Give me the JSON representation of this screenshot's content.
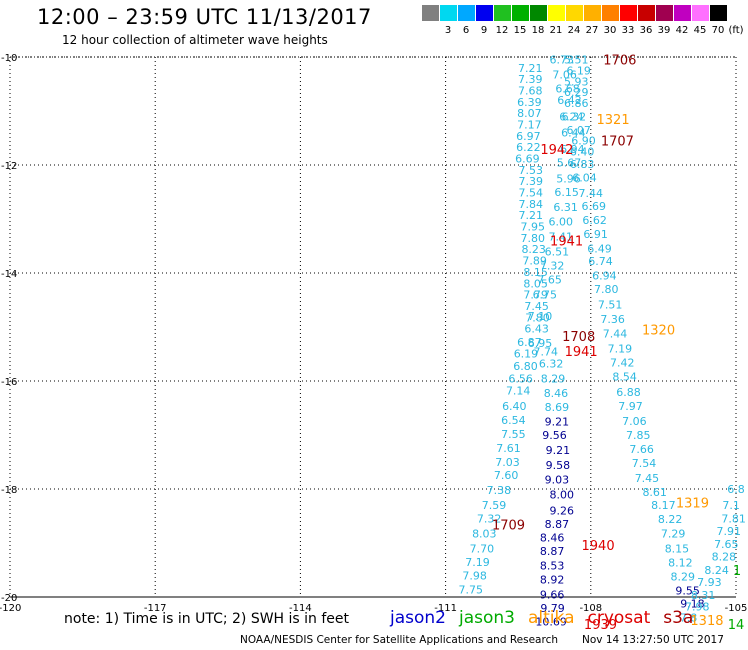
{
  "header": {
    "title": "12:00 – 23:59 UTC 11/13/2017",
    "subtitle": "12 hour collection of altimeter wave heights"
  },
  "legend": {
    "unit": "(ft)",
    "items": [
      {
        "label": "",
        "color": "#808080"
      },
      {
        "label": "3",
        "color": "#00d8f0"
      },
      {
        "label": "6",
        "color": "#00a8ff"
      },
      {
        "label": "9",
        "color": "#0000f0"
      },
      {
        "label": "12",
        "color": "#20c020"
      },
      {
        "label": "15",
        "color": "#00b000"
      },
      {
        "label": "18",
        "color": "#008800"
      },
      {
        "label": "21",
        "color": "#ffff00"
      },
      {
        "label": "24",
        "color": "#ffd800"
      },
      {
        "label": "27",
        "color": "#ffb000"
      },
      {
        "label": "30",
        "color": "#ff8000"
      },
      {
        "label": "33",
        "color": "#ff0000"
      },
      {
        "label": "36",
        "color": "#c80000"
      },
      {
        "label": "39",
        "color": "#a00050"
      },
      {
        "label": "42",
        "color": "#c000c0"
      },
      {
        "label": "45",
        "color": "#ff70ff"
      },
      {
        "label": "70",
        "color": "#000000"
      }
    ]
  },
  "footer": {
    "notes": "note: 1) Time is in UTC; 2) SWH is in feet",
    "satellites": [
      {
        "name": "jason2",
        "color": "#0000cc"
      },
      {
        "name": "jason3",
        "color": "#00aa00"
      },
      {
        "name": "altika",
        "color": "#ff9900"
      },
      {
        "name": "cryosat",
        "color": "#dd0000"
      },
      {
        "name": "s3a",
        "color": "#aa0000"
      }
    ],
    "credit": "NOAA/NESDIS Center for Satellite Applications and Research",
    "timestamp": "Nov 14 13:27:50 UTC 2017"
  },
  "chart_data": {
    "type": "scatter",
    "title": "12:00 – 23:59 UTC 11/13/2017",
    "subtitle": "12 hour collection of altimeter wave heights",
    "x_axis": {
      "range": [
        -120,
        -105
      ],
      "ticks": [
        -120,
        -117,
        -114,
        -111,
        -108,
        -105
      ],
      "tick_labels": [
        "-120",
        "-117",
        "-114",
        "-111",
        "-108",
        "-105"
      ]
    },
    "y_axis": {
      "range": [
        -20,
        -10
      ],
      "ticks": [
        -10,
        -12,
        -14,
        -16,
        -18,
        -20
      ],
      "tick_labels": [
        "-10",
        "-12",
        "-14",
        "-16",
        "-18",
        "-20"
      ]
    },
    "grid": true,
    "colors": {
      "teal": "#2cb8e0",
      "navy": "#000090",
      "darkred": "#8b0000",
      "red": "#dd0000",
      "orange": "#ff9900",
      "green": "#00aa00"
    },
    "series": [
      {
        "name": "track-a",
        "color": "teal",
        "points": [
          [
            -109.25,
            -10.2,
            "7.21"
          ],
          [
            -109.25,
            -10.41,
            "7.39"
          ],
          [
            -109.25,
            -10.62,
            "7.68"
          ],
          [
            -109.27,
            -10.83,
            "6.39"
          ],
          [
            -109.27,
            -11.04,
            "8.07"
          ],
          [
            -109.27,
            -11.25,
            "7.17"
          ],
          [
            -109.29,
            -11.46,
            "6.97"
          ],
          [
            -109.29,
            -11.67,
            "6.22"
          ],
          [
            -109.31,
            -11.88,
            "6.69"
          ],
          [
            -109.24,
            -12.09,
            "7.53"
          ],
          [
            -109.24,
            -12.3,
            "7.39"
          ],
          [
            -109.24,
            -12.51,
            "7.54"
          ],
          [
            -109.24,
            -12.72,
            "7.84"
          ],
          [
            -109.24,
            -12.93,
            "7.21"
          ],
          [
            -109.2,
            -13.14,
            "7.95"
          ],
          [
            -109.2,
            -13.35,
            "7.80"
          ],
          [
            -109.18,
            -13.56,
            "8.23"
          ],
          [
            -109.16,
            -13.77,
            "7.89"
          ],
          [
            -109.14,
            -13.98,
            "8.15"
          ],
          [
            -109.14,
            -14.19,
            "8.05"
          ],
          [
            -109.14,
            -14.4,
            "7.79"
          ],
          [
            -109.12,
            -14.61,
            "7.45"
          ],
          [
            -109.1,
            -14.82,
            "7.80"
          ],
          [
            -109.12,
            -15.03,
            "6.43"
          ],
          [
            -109.27,
            -15.28,
            "6.87"
          ],
          [
            -109.34,
            -15.49,
            "6.19"
          ],
          [
            -109.35,
            -15.72,
            "6.80"
          ],
          [
            -109.45,
            -15.95,
            "6.56"
          ],
          [
            -109.5,
            -16.18,
            "7.14"
          ],
          [
            -109.58,
            -16.46,
            "6.40"
          ],
          [
            -109.6,
            -16.72,
            "6.54"
          ],
          [
            -109.6,
            -16.98,
            "7.55"
          ],
          [
            -109.7,
            -17.24,
            "7.61"
          ],
          [
            -109.72,
            -17.5,
            "7.03"
          ],
          [
            -109.75,
            -17.74,
            "7.60"
          ],
          [
            -109.9,
            -18.02,
            "7.38"
          ],
          [
            -110.0,
            -18.3,
            "7.59"
          ],
          [
            -110.1,
            -18.55,
            "7.32"
          ],
          [
            -110.2,
            -18.82,
            "8.03"
          ],
          [
            -110.25,
            -19.1,
            "7.70"
          ],
          [
            -110.34,
            -19.35,
            "7.19"
          ],
          [
            -110.4,
            -19.6,
            "7.98"
          ],
          [
            -110.48,
            -19.86,
            "7.75"
          ]
        ]
      },
      {
        "name": "track-b",
        "color": "teal",
        "points": [
          [
            -108.6,
            -10.05,
            "6.73"
          ],
          [
            -108.54,
            -10.32,
            "7.06"
          ],
          [
            -108.48,
            -10.58,
            "6.68"
          ],
          [
            -108.44,
            -10.8,
            "6.42"
          ],
          [
            -108.4,
            -11.1,
            "6.24"
          ],
          [
            -108.36,
            -11.4,
            "6.44"
          ],
          [
            -108.38,
            -11.7,
            "6.94"
          ],
          [
            -108.45,
            -11.95,
            "5.67"
          ],
          [
            -108.46,
            -12.25,
            "5.96"
          ],
          [
            -108.5,
            -12.5,
            "6.15"
          ],
          [
            -108.52,
            -12.78,
            "6.31"
          ],
          [
            -108.62,
            -13.05,
            "6.00"
          ],
          [
            -108.62,
            -13.32,
            "7.41"
          ],
          [
            -108.7,
            -13.6,
            "6.51"
          ],
          [
            -108.8,
            -13.86,
            "7.32"
          ],
          [
            -108.85,
            -14.12,
            "7.65"
          ],
          [
            -108.95,
            -14.4,
            "6.75"
          ],
          [
            -109.05,
            -14.8,
            "7.10"
          ],
          [
            -109.05,
            -15.3,
            "6.95"
          ],
          [
            -108.93,
            -15.45,
            "7.74"
          ],
          [
            -108.82,
            -15.68,
            "6.32"
          ],
          [
            -108.78,
            -15.95,
            "8.29"
          ],
          [
            -108.72,
            -16.22,
            "8.46"
          ],
          [
            -108.7,
            -16.48,
            "8.69"
          ]
        ]
      },
      {
        "name": "track-c",
        "color": "teal",
        "points": [
          [
            -108.3,
            -10.05,
            "5.51"
          ],
          [
            -108.25,
            -10.25,
            "6.19"
          ],
          [
            -108.3,
            -10.45,
            "5.93"
          ],
          [
            -108.3,
            -10.65,
            "6.29"
          ],
          [
            -108.3,
            -10.85,
            "6.86"
          ],
          [
            -108.35,
            -11.1,
            "6.32"
          ],
          [
            -108.25,
            -11.35,
            "6.07"
          ],
          [
            -108.15,
            -11.55,
            "6.90"
          ],
          [
            -108.18,
            -11.75,
            "6.40"
          ],
          [
            -108.18,
            -11.98,
            "6.83"
          ],
          [
            -108.13,
            -12.23,
            "6.04"
          ],
          [
            -108.0,
            -12.52,
            "7.44"
          ],
          [
            -107.94,
            -12.76,
            "6.69"
          ],
          [
            -107.92,
            -13.02,
            "6.62"
          ],
          [
            -107.9,
            -13.28,
            "6.91"
          ],
          [
            -107.82,
            -13.55,
            "6.49"
          ],
          [
            -107.8,
            -13.78,
            "6.74"
          ],
          [
            -107.72,
            -14.05,
            "6.94"
          ],
          [
            -107.68,
            -14.3,
            "7.80"
          ],
          [
            -107.6,
            -14.58,
            "7.51"
          ],
          [
            -107.55,
            -14.85,
            "7.36"
          ],
          [
            -107.5,
            -15.12,
            "7.44"
          ],
          [
            -107.4,
            -15.4,
            "7.19"
          ],
          [
            -107.35,
            -15.66,
            "7.42"
          ],
          [
            -107.3,
            -15.92,
            "8.54"
          ],
          [
            -107.22,
            -16.2,
            "6.88"
          ],
          [
            -107.18,
            -16.46,
            "7.97"
          ],
          [
            -107.1,
            -16.74,
            "7.06"
          ],
          [
            -107.02,
            -17.0,
            "7.85"
          ],
          [
            -106.95,
            -17.26,
            "7.66"
          ],
          [
            -106.9,
            -17.52,
            "7.54"
          ],
          [
            -106.84,
            -17.8,
            "7.45"
          ],
          [
            -106.68,
            -18.06,
            "8.61"
          ],
          [
            -106.5,
            -18.3,
            "8.17"
          ],
          [
            -106.36,
            -18.56,
            "8.22"
          ],
          [
            -106.3,
            -18.82,
            "7.29"
          ],
          [
            -106.22,
            -19.1,
            "8.15"
          ],
          [
            -106.15,
            -19.36,
            "8.12"
          ],
          [
            -106.1,
            -19.62,
            "8.29"
          ]
        ]
      },
      {
        "name": "track-d",
        "color": "navy",
        "points": [
          [
            -108.7,
            -16.75,
            "9.21"
          ],
          [
            -108.75,
            -17.0,
            "9.56"
          ],
          [
            -108.68,
            -17.28,
            "9.21"
          ],
          [
            -108.68,
            -17.56,
            "9.58"
          ],
          [
            -108.7,
            -17.82,
            "9.03"
          ],
          [
            -108.6,
            -18.1,
            "8.00"
          ],
          [
            -108.6,
            -18.4,
            "9.26"
          ],
          [
            -108.7,
            -18.65,
            "8.87"
          ],
          [
            -108.8,
            -18.9,
            "8.46"
          ],
          [
            -108.8,
            -19.15,
            "8.87"
          ],
          [
            -108.8,
            -19.42,
            "8.53"
          ],
          [
            -108.8,
            -19.68,
            "8.92"
          ],
          [
            -108.8,
            -19.95,
            "9.66"
          ],
          [
            -108.79,
            -20.2,
            "9.79"
          ],
          [
            -108.82,
            -20.45,
            "10.69"
          ]
        ]
      },
      {
        "name": "track-e",
        "color": "navy",
        "points": [
          [
            -106.0,
            -19.88,
            "9.55"
          ],
          [
            -105.9,
            -20.12,
            "9.18"
          ]
        ]
      },
      {
        "name": "track-f",
        "color": "teal",
        "points": [
          [
            -105.0,
            -18.0,
            "6.8"
          ],
          [
            -105.1,
            -18.3,
            "7.1"
          ],
          [
            -105.05,
            -18.55,
            "7.81"
          ],
          [
            -105.15,
            -18.78,
            "7.91"
          ],
          [
            -105.2,
            -19.02,
            "7.65"
          ],
          [
            -105.25,
            -19.25,
            "8.28"
          ],
          [
            -105.4,
            -19.5,
            "8.24"
          ],
          [
            -105.55,
            -19.72,
            "7.93"
          ],
          [
            -105.68,
            -19.96,
            "8.31"
          ],
          [
            -105.8,
            -20.18,
            "7.98"
          ],
          [
            -105.98,
            -20.38,
            "7.8"
          ]
        ]
      }
    ],
    "time_labels": [
      {
        "text": "1706",
        "x": -107.4,
        "y": -10.05,
        "color": "darkred"
      },
      {
        "text": "1321",
        "x": -107.54,
        "y": -11.15,
        "color": "orange"
      },
      {
        "text": "1707",
        "x": -107.45,
        "y": -11.55,
        "color": "darkred"
      },
      {
        "text": "1942",
        "x": -108.7,
        "y": -11.7,
        "color": "red"
      },
      {
        "text": "1941",
        "x": -108.5,
        "y": -13.4,
        "color": "red"
      },
      {
        "text": "1320",
        "x": -106.6,
        "y": -15.05,
        "color": "orange"
      },
      {
        "text": "1708",
        "x": -108.25,
        "y": -15.17,
        "color": "darkred"
      },
      {
        "text": "1941",
        "x": -108.2,
        "y": -15.44,
        "color": "red"
      },
      {
        "text": "1319",
        "x": -105.9,
        "y": -18.25,
        "color": "orange"
      },
      {
        "text": "1709",
        "x": -109.7,
        "y": -18.66,
        "color": "darkred"
      },
      {
        "text": "1940",
        "x": -107.85,
        "y": -19.04,
        "color": "red"
      },
      {
        "text": "1939",
        "x": -107.8,
        "y": -20.5,
        "color": "red"
      },
      {
        "text": "1318",
        "x": -105.6,
        "y": -20.43,
        "color": "orange"
      },
      {
        "text": "14",
        "x": -105.0,
        "y": -20.5,
        "color": "green"
      },
      {
        "text": "1",
        "x": -104.98,
        "y": -19.5,
        "color": "green"
      }
    ]
  }
}
